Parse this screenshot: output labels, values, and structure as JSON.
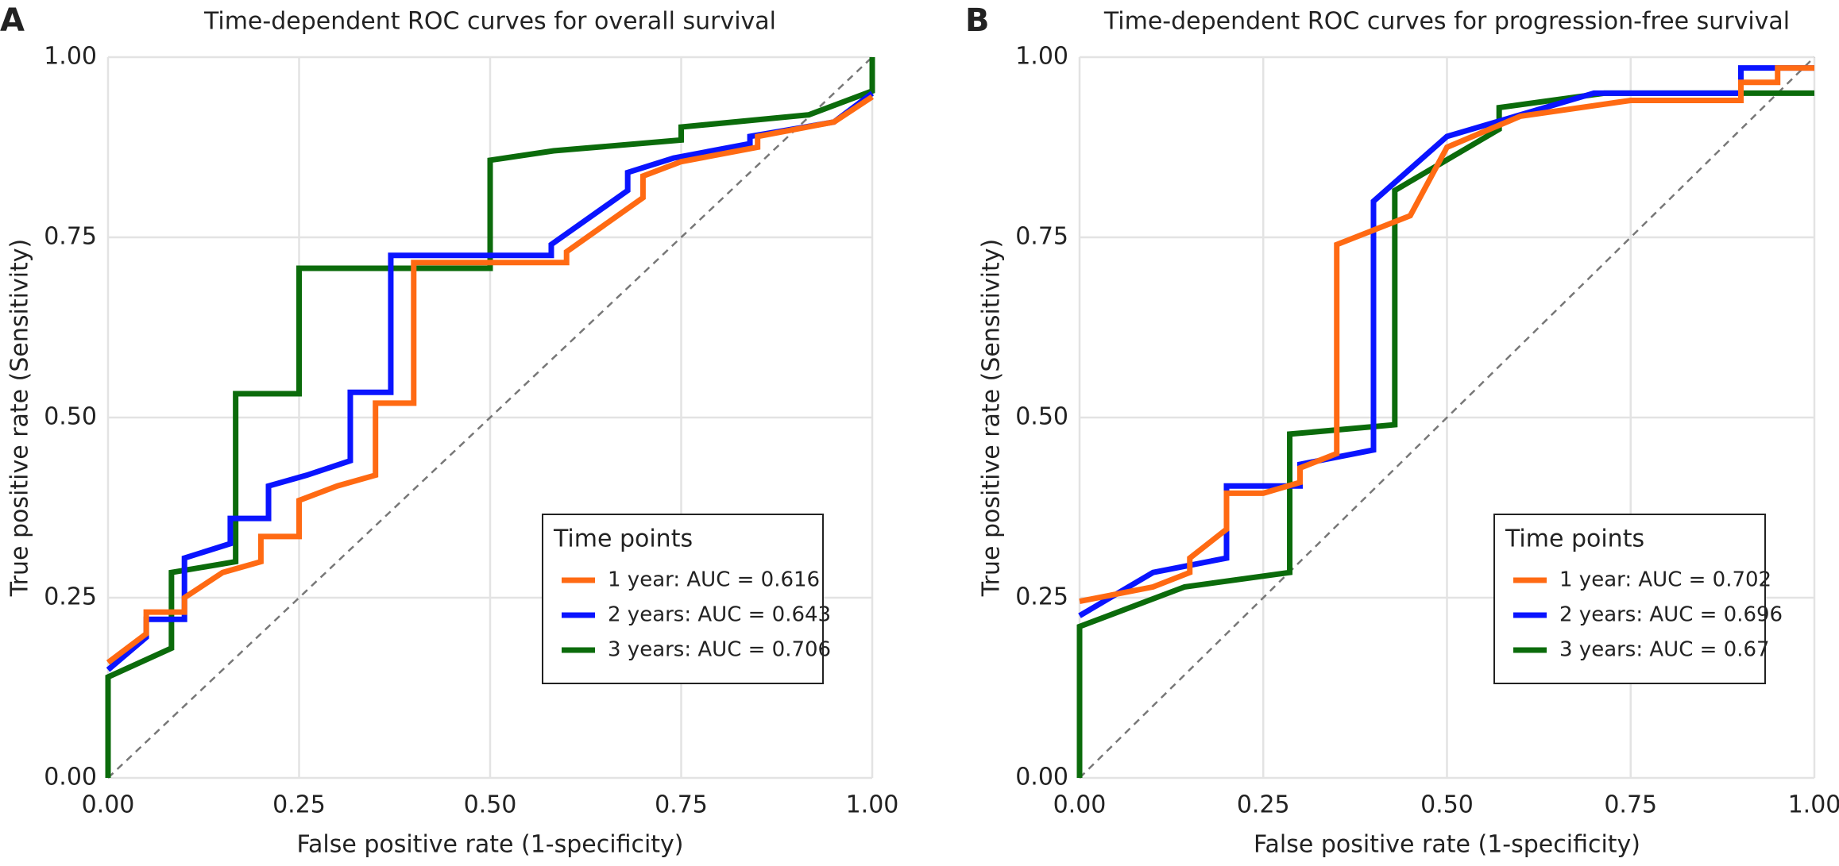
{
  "chart_data": [
    {
      "type": "line",
      "panel": "A",
      "title": "Time-dependent ROC curves for overall survival",
      "xlabel": "False positive rate (1-specificity)",
      "ylabel": "True positive rate (Sensitivity)",
      "xlim": [
        0,
        1
      ],
      "ylim": [
        0,
        1
      ],
      "xticks": [
        {
          "value": 0,
          "label": "0.00"
        },
        0.25,
        {
          "value": 0.5,
          "label": "0.50"
        },
        0.75,
        {
          "value": 1,
          "label": "1.00"
        }
      ],
      "yticks": [
        {
          "value": 0,
          "label": "0.00"
        },
        0.25,
        {
          "value": 0.5,
          "label": "0.50"
        },
        0.75,
        {
          "value": 1,
          "label": "1.00"
        }
      ],
      "grid": true,
      "legend_title": "Time points",
      "legend_position": "lower right",
      "series": [
        {
          "name": "1 year: AUC = 0.616",
          "color": "#ff6a13",
          "x": [
            0,
            0.05,
            0.05,
            0.1,
            0.1,
            0.15,
            0.2,
            0.2,
            0.25,
            0.25,
            0.3,
            0.35,
            0.35,
            0.4,
            0.4,
            0.6,
            0.6,
            0.7,
            0.7,
            0.75,
            0.85,
            0.85,
            0.95,
            1
          ],
          "values": [
            0.16,
            0.2,
            0.23,
            0.23,
            0.25,
            0.285,
            0.3,
            0.335,
            0.335,
            0.385,
            0.405,
            0.42,
            0.52,
            0.52,
            0.715,
            0.715,
            0.73,
            0.805,
            0.835,
            0.855,
            0.875,
            0.89,
            0.91,
            0.945
          ]
        },
        {
          "name": "2 years: AUC = 0.643",
          "color": "#0a14ff",
          "x": [
            0,
            0.05,
            0.05,
            0.1,
            0.1,
            0.16,
            0.16,
            0.21,
            0.21,
            0.26,
            0.317,
            0.317,
            0.37,
            0.37,
            0.58,
            0.58,
            0.68,
            0.68,
            0.74,
            0.84,
            0.84,
            0.95,
            1
          ],
          "values": [
            0.15,
            0.195,
            0.22,
            0.22,
            0.305,
            0.325,
            0.36,
            0.36,
            0.405,
            0.42,
            0.44,
            0.535,
            0.535,
            0.725,
            0.725,
            0.74,
            0.815,
            0.84,
            0.86,
            0.88,
            0.89,
            0.91,
            0.95
          ]
        },
        {
          "name": "3 years: AUC = 0.706",
          "color": "#0b6b0b",
          "x": [
            0,
            0,
            0.083,
            0.083,
            0.167,
            0.167,
            0.25,
            0.25,
            0.5,
            0.5,
            0.583,
            0.75,
            0.75,
            0.917,
            1,
            1
          ],
          "values": [
            0,
            0.14,
            0.18,
            0.285,
            0.3,
            0.533,
            0.533,
            0.707,
            0.707,
            0.857,
            0.87,
            0.885,
            0.903,
            0.92,
            0.953,
            1
          ]
        }
      ]
    },
    {
      "type": "line",
      "panel": "B",
      "title": "Time-dependent ROC curves for progression-free survival",
      "xlabel": "False positive rate (1-specificity)",
      "ylabel": "True positive rate (Sensitivity)",
      "xlim": [
        0,
        1
      ],
      "ylim": [
        0,
        1
      ],
      "xticks": [
        {
          "value": 0,
          "label": "0.00"
        },
        0.25,
        {
          "value": 0.5,
          "label": "0.50"
        },
        0.75,
        {
          "value": 1,
          "label": "1.00"
        }
      ],
      "yticks": [
        {
          "value": 0,
          "label": "0.00"
        },
        0.25,
        {
          "value": 0.5,
          "label": "0.50"
        },
        0.75,
        {
          "value": 1,
          "label": "1.00"
        }
      ],
      "grid": true,
      "legend_title": "Time points",
      "legend_position": "lower right",
      "series": [
        {
          "name": "1 year: AUC = 0.702",
          "color": "#ff6a13",
          "x": [
            0,
            0.1,
            0.15,
            0.15,
            0.2,
            0.2,
            0.25,
            0.3,
            0.3,
            0.35,
            0.35,
            0.45,
            0.5,
            0.6,
            0.75,
            0.9,
            0.9,
            0.95,
            0.95,
            1
          ],
          "values": [
            0.245,
            0.265,
            0.285,
            0.305,
            0.345,
            0.395,
            0.395,
            0.41,
            0.43,
            0.45,
            0.74,
            0.78,
            0.875,
            0.918,
            0.94,
            0.94,
            0.965,
            0.965,
            0.985,
            0.985
          ]
        },
        {
          "name": "2 years: AUC = 0.696",
          "color": "#0a14ff",
          "x": [
            0,
            0.1,
            0.2,
            0.2,
            0.3,
            0.3,
            0.4,
            0.4,
            0.5,
            0.7,
            0.9,
            0.9,
            1
          ],
          "values": [
            0.225,
            0.285,
            0.305,
            0.405,
            0.405,
            0.435,
            0.455,
            0.8,
            0.89,
            0.95,
            0.95,
            0.985,
            0.985
          ]
        },
        {
          "name": "3 years: AUC = 0.67",
          "color": "#0b6b0b",
          "x": [
            0,
            0,
            0.143,
            0.286,
            0.286,
            0.429,
            0.429,
            0.571,
            0.571,
            0.714,
            1
          ],
          "values": [
            0,
            0.21,
            0.265,
            0.285,
            0.477,
            0.49,
            0.815,
            0.9,
            0.93,
            0.95,
            0.95
          ]
        }
      ]
    }
  ]
}
